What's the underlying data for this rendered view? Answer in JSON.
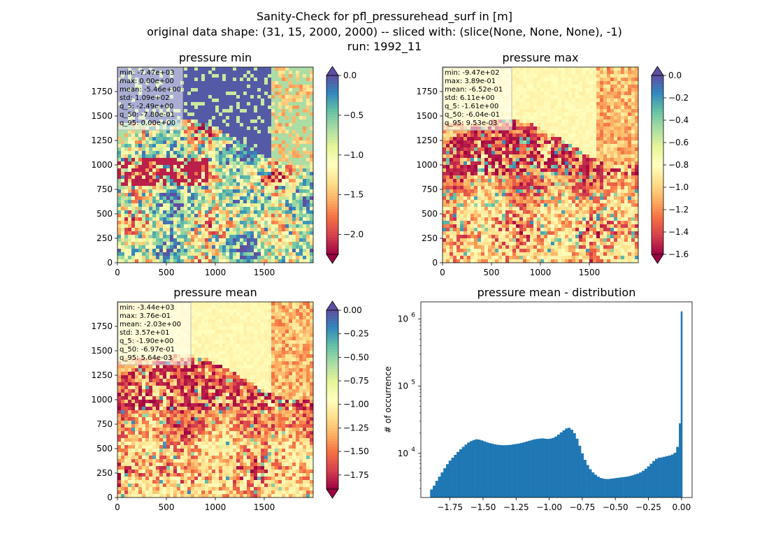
{
  "figure": {
    "title_lines": [
      "Sanity-Check for pfl_pressurehead_surf in [m]",
      "original data shape: (31, 15, 2000, 2000) -- sliced with: (slice(None, None, None), -1)",
      "run: 1992_11"
    ]
  },
  "chart_data": [
    {
      "type": "heatmap",
      "title": "pressure min",
      "xticks": [
        "0",
        "500",
        "1000",
        "1500"
      ],
      "yticks": [
        "0",
        "250",
        "500",
        "750",
        "1000",
        "1250",
        "1500",
        "1750"
      ],
      "xlim": [
        0,
        2000
      ],
      "ylim": [
        0,
        2000
      ],
      "colormap": "Spectral",
      "colorbar": {
        "ticks": [
          "0.0",
          "−0.5",
          "−1.0",
          "−1.5",
          "−2.0"
        ],
        "tick_values": [
          0,
          -0.5,
          -1.0,
          -1.5,
          -2.0
        ],
        "range": [
          -2.25,
          0.0
        ],
        "extend": "both"
      },
      "stats": [
        "min: -7.47e+03",
        "max: 0.00e+00",
        "mean: -5.46e+00",
        "std: 1.09e+02",
        "q_5: -2.49e+00",
        "q_50: -7.80e-01",
        "q_95: 0.00e+00"
      ]
    },
    {
      "type": "heatmap",
      "title": "pressure max",
      "xticks": [
        "0",
        "500",
        "1000",
        "1500"
      ],
      "yticks": [
        "0",
        "250",
        "500",
        "750",
        "1000",
        "1250",
        "1500",
        "1750"
      ],
      "xlim": [
        0,
        2000
      ],
      "ylim": [
        0,
        2000
      ],
      "colormap": "Spectral",
      "colorbar": {
        "ticks": [
          "0.0",
          "−0.2",
          "−0.4",
          "−0.6",
          "−0.8",
          "−1.0",
          "−1.2",
          "−1.4",
          "−1.6"
        ],
        "tick_values": [
          0,
          -0.2,
          -0.4,
          -0.6,
          -0.8,
          -1.0,
          -1.2,
          -1.4,
          -1.6
        ],
        "range": [
          -1.6,
          0.0
        ],
        "extend": "both"
      },
      "stats": [
        "min: -9.47e+02",
        "max: 3.89e-01",
        "mean: -6.52e-01",
        "std: 6.11e+00",
        "q_5: -1.61e+00",
        "q_50: -6.04e-01",
        "q_95: 9.53e-03"
      ]
    },
    {
      "type": "heatmap",
      "title": "pressure mean",
      "xticks": [
        "0",
        "500",
        "1000",
        "1500"
      ],
      "yticks": [
        "0",
        "250",
        "500",
        "750",
        "1000",
        "1250",
        "1500",
        "1750"
      ],
      "xlim": [
        0,
        2000
      ],
      "ylim": [
        0,
        2000
      ],
      "colormap": "Spectral",
      "colorbar": {
        "ticks": [
          "0.00",
          "−0.25",
          "−0.50",
          "−0.75",
          "−1.00",
          "−1.25",
          "−1.50",
          "−1.75"
        ],
        "tick_values": [
          0,
          -0.25,
          -0.5,
          -0.75,
          -1.0,
          -1.25,
          -1.5,
          -1.75
        ],
        "range": [
          -1.9,
          0.0
        ],
        "extend": "both"
      },
      "stats": [
        "min: -3.44e+03",
        "max: 3.76e-01",
        "mean: -2.03e+00",
        "std: 3.57e+01",
        "q_5: -1.90e+00",
        "q_50: -6.97e-01",
        "q_95: 5.64e-03"
      ]
    },
    {
      "type": "bar",
      "title": "pressure mean - distribution",
      "ylabel": "# of occurrence",
      "xlabel": "",
      "yscale": "log",
      "xticks": [
        "−1.75",
        "−1.50",
        "−1.25",
        "−1.00",
        "−0.75",
        "−0.50",
        "−0.25",
        "0.00"
      ],
      "xtick_values": [
        -1.75,
        -1.5,
        -1.25,
        -1.0,
        -0.75,
        -0.5,
        -0.25,
        0.0
      ],
      "yticks": [
        "10^4",
        "10^5",
        "10^6"
      ],
      "xlim": [
        -1.97,
        0.08
      ],
      "ylim": [
        2200,
        1800000
      ],
      "color": "#1f77b4",
      "x": [
        -1.89,
        -1.87,
        -1.85,
        -1.83,
        -1.81,
        -1.79,
        -1.77,
        -1.75,
        -1.73,
        -1.71,
        -1.69,
        -1.67,
        -1.65,
        -1.63,
        -1.61,
        -1.59,
        -1.57,
        -1.55,
        -1.53,
        -1.51,
        -1.49,
        -1.47,
        -1.45,
        -1.43,
        -1.41,
        -1.39,
        -1.37,
        -1.35,
        -1.33,
        -1.31,
        -1.29,
        -1.27,
        -1.25,
        -1.23,
        -1.21,
        -1.19,
        -1.17,
        -1.15,
        -1.13,
        -1.11,
        -1.09,
        -1.07,
        -1.05,
        -1.03,
        -1.01,
        -0.99,
        -0.97,
        -0.95,
        -0.93,
        -0.91,
        -0.89,
        -0.87,
        -0.85,
        -0.83,
        -0.81,
        -0.79,
        -0.77,
        -0.75,
        -0.73,
        -0.71,
        -0.69,
        -0.67,
        -0.65,
        -0.63,
        -0.61,
        -0.59,
        -0.57,
        -0.55,
        -0.53,
        -0.51,
        -0.49,
        -0.47,
        -0.45,
        -0.43,
        -0.41,
        -0.39,
        -0.37,
        -0.35,
        -0.33,
        -0.31,
        -0.29,
        -0.27,
        -0.25,
        -0.23,
        -0.21,
        -0.19,
        -0.17,
        -0.15,
        -0.13,
        -0.11,
        -0.09,
        -0.07,
        -0.05,
        -0.03,
        -0.01,
        0.0
      ],
      "values": [
        2900,
        3300,
        3900,
        4500,
        5200,
        6000,
        6900,
        7800,
        8600,
        9500,
        10500,
        11500,
        12500,
        13500,
        14500,
        15200,
        15800,
        16200,
        16000,
        15600,
        15100,
        14600,
        14200,
        13900,
        13600,
        13400,
        13300,
        13200,
        13200,
        13300,
        13400,
        13600,
        13800,
        14000,
        14300,
        14600,
        15000,
        15400,
        15800,
        16200,
        16400,
        16600,
        16700,
        16500,
        16400,
        16600,
        17000,
        17800,
        19000,
        20500,
        22000,
        23500,
        24000,
        22500,
        20000,
        16500,
        13000,
        10000,
        8000,
        6700,
        5800,
        5200,
        4800,
        4500,
        4300,
        4200,
        4150,
        4150,
        4200,
        4250,
        4300,
        4350,
        4400,
        4450,
        4500,
        4600,
        4700,
        4850,
        5000,
        5200,
        5500,
        5900,
        6400,
        7000,
        7700,
        8300,
        8600,
        8700,
        8900,
        9100,
        9300,
        9600,
        10200,
        12500,
        28000,
        1300000
      ]
    }
  ]
}
